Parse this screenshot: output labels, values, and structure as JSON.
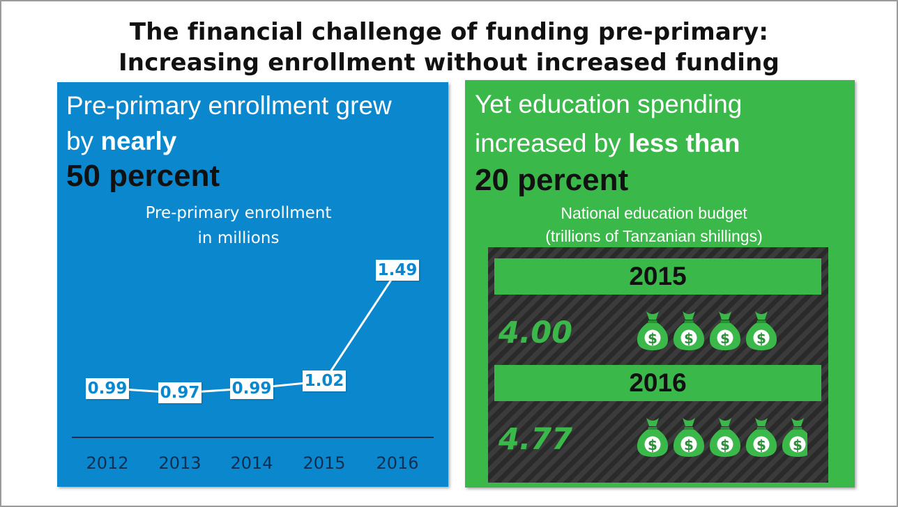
{
  "title_line1": "The financial challenge of funding pre-primary:",
  "title_line2": "Increasing enrollment without increased funding",
  "left_panel": {
    "heading_line1": "Pre-primary enrollment grew",
    "heading_by": "by ",
    "heading_bold": "nearly",
    "big_text": "50 percent",
    "subtitle_line1": "Pre-primary enrollment",
    "subtitle_line2": "in millions"
  },
  "right_panel": {
    "heading_line1": "Yet education spending",
    "heading_pre": "increased by ",
    "heading_bold": "less than",
    "big_text": "20 percent",
    "subtitle_line1": "National education budget",
    "subtitle_line2": "(trillions of Tanzanian shillings)"
  },
  "colors": {
    "blue": "#0a87cd",
    "green": "#3ab84a",
    "dark": "#2f2f2f"
  },
  "chart_data": [
    {
      "type": "line",
      "title": "Pre-primary enrollment in millions",
      "x": [
        "2012",
        "2013",
        "2014",
        "2015",
        "2016"
      ],
      "values": [
        0.99,
        0.97,
        0.99,
        1.02,
        1.49
      ],
      "data_labels": [
        "0.99",
        "0.97",
        "0.99",
        "1.02",
        "1.49"
      ],
      "grid": false,
      "legend": "none"
    },
    {
      "type": "bar",
      "title": "National education budget (trillions of Tanzanian shillings)",
      "categories": [
        "2015",
        "2016"
      ],
      "values": [
        4.0,
        4.77
      ],
      "data_labels": [
        "4.00",
        "4.77"
      ],
      "icon": "money-bag-icon"
    }
  ]
}
